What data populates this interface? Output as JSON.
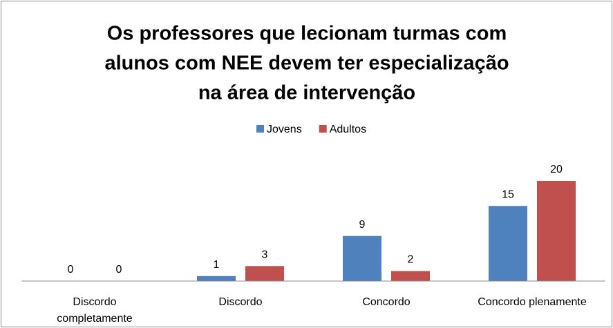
{
  "chart_data": {
    "type": "bar",
    "title": [
      "Os professores que lecionam turmas com",
      "alunos com NEE devem ter especialização",
      "na área de intervenção"
    ],
    "categories": [
      "Discordo completamente",
      "Discordo",
      "Concordo",
      "Concordo plenamente"
    ],
    "series": [
      {
        "name": "Jovens",
        "color": "#4f81bd",
        "values": [
          0,
          1,
          9,
          15
        ]
      },
      {
        "name": "Adultos",
        "color": "#c0504d",
        "values": [
          0,
          3,
          2,
          20
        ]
      }
    ],
    "legend": "top"
  }
}
